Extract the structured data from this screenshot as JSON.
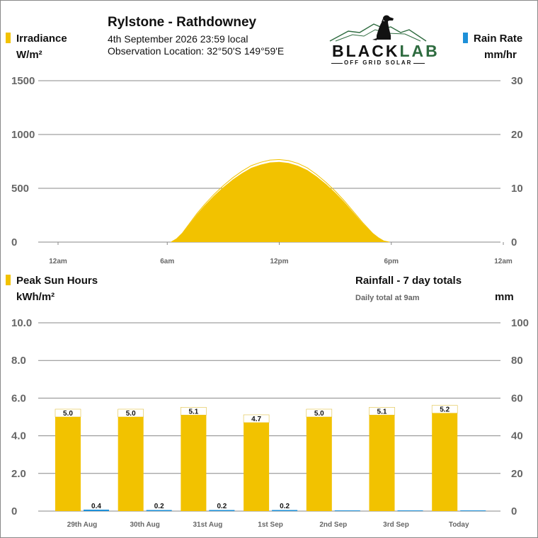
{
  "header": {
    "station": "Rylstone - Rathdowney",
    "date_line": "4th September 2026  23:59 local",
    "location_line": "Observation Location: 32°50'S 149°59'E",
    "logo_word_black": "BLACK",
    "logo_word_lab": "LAB",
    "logo_sub": "OFF GRID SOLAR",
    "logo_icon": "dog-on-mountains-icon"
  },
  "colors": {
    "irradiance": "#F2C200",
    "rain": "#1E90D8",
    "grid": "#888888",
    "axis_text": "#666666",
    "logo_lab": "#2E6B3F"
  },
  "chart_data": [
    {
      "type": "area",
      "left_legend": "Irradiance",
      "left_unit": "W/m²",
      "right_legend": "Rain Rate",
      "right_unit": "mm/hr",
      "x_ticks": [
        "12am",
        "6am",
        "12pm",
        "6pm",
        "12am"
      ],
      "ylim_left": [
        0,
        1500
      ],
      "yticks_left": [
        "0",
        "500",
        "1000",
        "1500"
      ],
      "ylim_right": [
        0,
        30
      ],
      "yticks_right": [
        "0",
        "10",
        "20",
        "30"
      ],
      "grid": true,
      "irradiance": {
        "hours": [
          6.2,
          6.5,
          6.8,
          7.2,
          7.6,
          8,
          8.5,
          9,
          9.5,
          10,
          10.5,
          11,
          11.5,
          12,
          12.5,
          13,
          13.5,
          14,
          14.5,
          15,
          15.5,
          16,
          16.5,
          17,
          17.3,
          17.6,
          17.9
        ],
        "values": [
          0,
          30,
          80,
          170,
          260,
          340,
          430,
          510,
          580,
          640,
          690,
          720,
          740,
          745,
          735,
          710,
          670,
          610,
          540,
          460,
          370,
          270,
          170,
          80,
          40,
          10,
          0
        ]
      },
      "rain_rate": {
        "values": []
      }
    },
    {
      "type": "bar",
      "left_legend": "Peak Sun Hours",
      "left_unit": "kWh/m²",
      "right_title": "Rainfall - 7 day totals",
      "right_subtitle": "Daily total at 9am",
      "right_unit": "mm",
      "categories": [
        "29th Aug",
        "30th Aug",
        "31st Aug",
        "1st Sep",
        "2nd Sep",
        "3rd Sep",
        "Today"
      ],
      "ylim_left": [
        0,
        10
      ],
      "yticks_left": [
        "0",
        "2.0",
        "4.0",
        "6.0",
        "8.0",
        "10.0"
      ],
      "ylim_right": [
        0,
        100
      ],
      "yticks_right": [
        "0",
        "20",
        "40",
        "60",
        "80",
        "100"
      ],
      "grid": true,
      "series": [
        {
          "values": [
            5.0,
            5.0,
            5.1,
            4.7,
            5.0,
            5.1,
            5.2
          ],
          "labels": [
            "5.0",
            "5.0",
            "5.1",
            "4.7",
            "5.0",
            "5.1",
            "5.2"
          ]
        },
        {
          "values": [
            0.4,
            0.2,
            0.2,
            0.2,
            0,
            0,
            0
          ],
          "labels": [
            "0.4",
            "0.2",
            "0.2",
            "0.2",
            "",
            "",
            ""
          ]
        }
      ]
    }
  ]
}
